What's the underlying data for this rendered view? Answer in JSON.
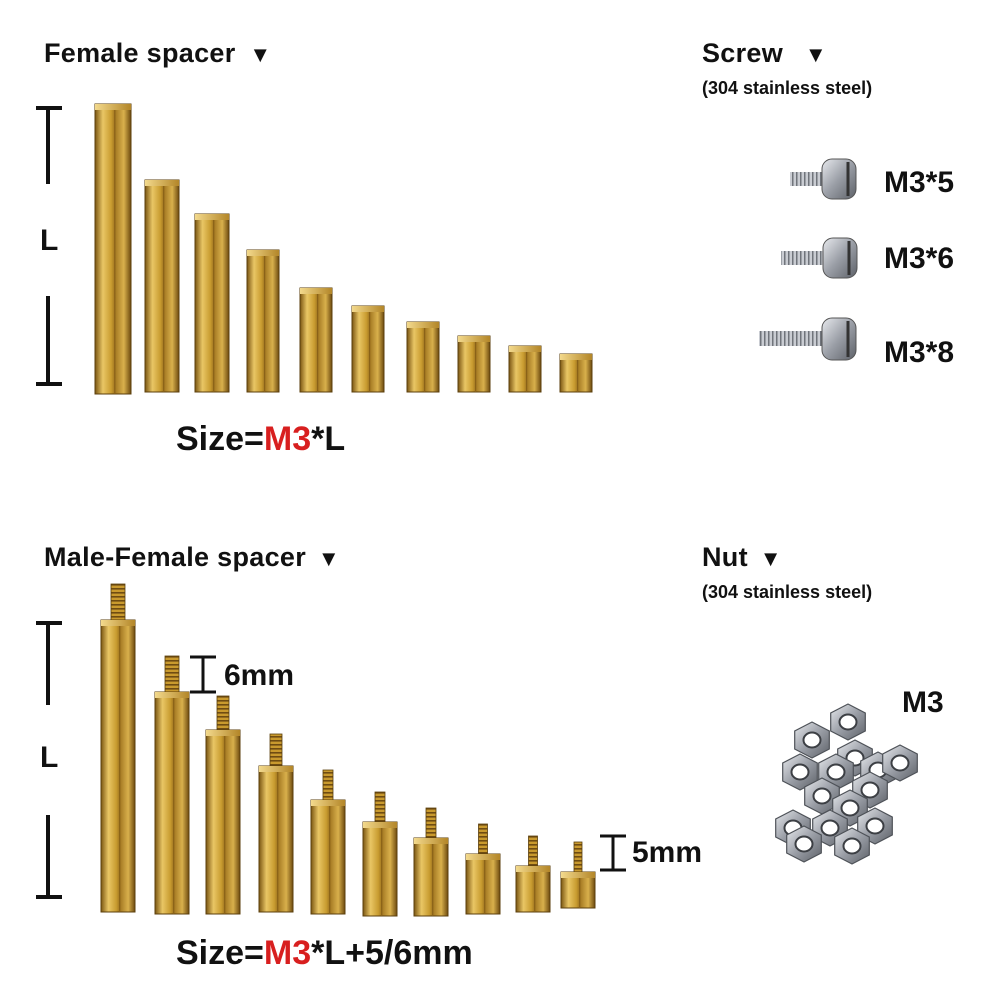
{
  "female": {
    "title": "Female spacer",
    "dim": "L",
    "size_prefix": "Size=",
    "size_red": "M3",
    "size_suffix": "*L"
  },
  "screw": {
    "title": "Screw",
    "material": "(304 stainless steel)",
    "sizes": [
      "M3*5",
      "M3*6",
      "M3*8"
    ]
  },
  "male": {
    "title": "Male-Female spacer",
    "dim": "L",
    "thread_top": "6mm",
    "thread_bottom": "5mm",
    "size_prefix": "Size=",
    "size_red": "M3",
    "size_suffix": "*L+5/6mm"
  },
  "nut": {
    "title": "Nut",
    "material": "(304 stainless steel)",
    "size": "M3"
  },
  "colors": {
    "accent": "#d81f1f",
    "brass": "#c9a232",
    "steel": "#a9acb2"
  }
}
